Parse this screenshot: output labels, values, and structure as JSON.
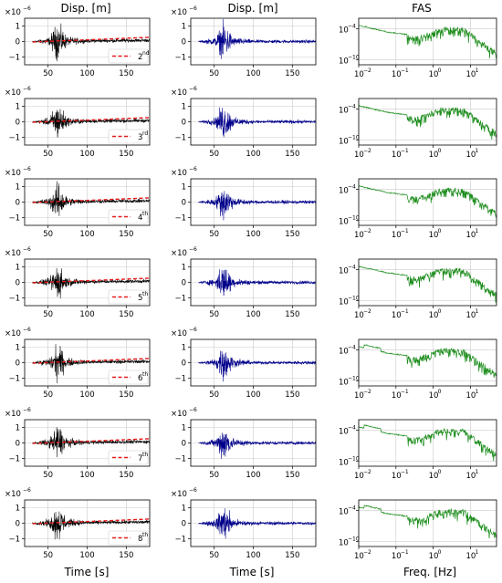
{
  "headers": {
    "col1": "Disp. [m]",
    "col2": "Disp. [m]",
    "col3": "FAS"
  },
  "xlabels": {
    "col1": "Time [s]",
    "col2": "Time [s]",
    "col3": "Freq. [Hz]"
  },
  "colors": {
    "col1_trace": "#000000",
    "col1_trend": "#e41a1c",
    "col2_trace": "#00008b",
    "col3_trace": "#1a8c1a",
    "grid": "#cccccc"
  },
  "time_axis": {
    "xlim": [
      20,
      180
    ],
    "xticks": [
      "50",
      "100",
      "150"
    ],
    "ylim": [
      -1.5,
      1.5
    ],
    "yticks": [
      "1",
      "0",
      "−1"
    ],
    "scale": "×10",
    "scale_exp": "−6"
  },
  "fas_axis": {
    "xscale": "log",
    "yscale": "log",
    "xticks_base": "10",
    "xticks_exp": [
      "−2",
      "−1",
      "0",
      "1"
    ],
    "yticks_base": "10",
    "yticks_exp": [
      "−4",
      "−10"
    ]
  },
  "rows": [
    {
      "legend_num": "2",
      "legend_sup": "nd"
    },
    {
      "legend_num": "3",
      "legend_sup": "rd"
    },
    {
      "legend_num": "4",
      "legend_sup": "th"
    },
    {
      "legend_num": "5",
      "legend_sup": "th"
    },
    {
      "legend_num": "6",
      "legend_sup": "th"
    },
    {
      "legend_num": "7",
      "legend_sup": "th"
    },
    {
      "legend_num": "8",
      "legend_sup": "th"
    }
  ],
  "chart_data": [
    {
      "type": "line",
      "title": "Disp. [m]",
      "xlabel": "Time [s]",
      "ylabel": "",
      "xlim": [
        20,
        180
      ],
      "ylim": [
        -1.5,
        1.5
      ],
      "grid": true,
      "legend_placement": "lower-right",
      "series": [
        {
          "name": "",
          "description_values": {
            "x": [
              30,
              55,
              60,
              65,
              100,
              180
            ],
            "y": [
              0,
              0.9,
              1.3,
              0.7,
              0.15,
              0.2
            ]
          }
        },
        {
          "name": "2nd",
          "values": {
            "x": [
              30,
              180
            ],
            "y": [
              -0.03,
              0.27
            ]
          }
        }
      ]
    },
    {
      "type": "line",
      "title": "Disp. [m]",
      "xlabel": "Time [s]",
      "ylabel": "",
      "xlim": [
        20,
        180
      ],
      "ylim": [
        -1.5,
        1.5
      ],
      "grid": true,
      "series": [
        {
          "name": "",
          "values": {
            "x": [
              30,
              55,
              60,
              65,
              100,
              180
            ],
            "y": [
              0,
              0.9,
              1.3,
              0.7,
              0.1,
              0.0
            ]
          }
        }
      ]
    },
    {
      "type": "line",
      "title": "FAS",
      "xlabel": "Freq. [Hz]",
      "ylabel": "",
      "xscale": "log",
      "yscale": "log",
      "xlim": [
        0.01,
        50
      ],
      "ylim": [
        1e-10,
        0.01
      ],
      "grid": true,
      "series": [
        {
          "name": "",
          "values": {
            "x": [
              0.01,
              0.03,
              0.1,
              0.3,
              1,
              3,
              10,
              50
            ],
            "y": [
              0.0003,
              3e-05,
              3e-06,
              3e-05,
              0.0001,
              3e-05,
              1e-06,
              1e-09
            ]
          }
        }
      ]
    }
  ]
}
